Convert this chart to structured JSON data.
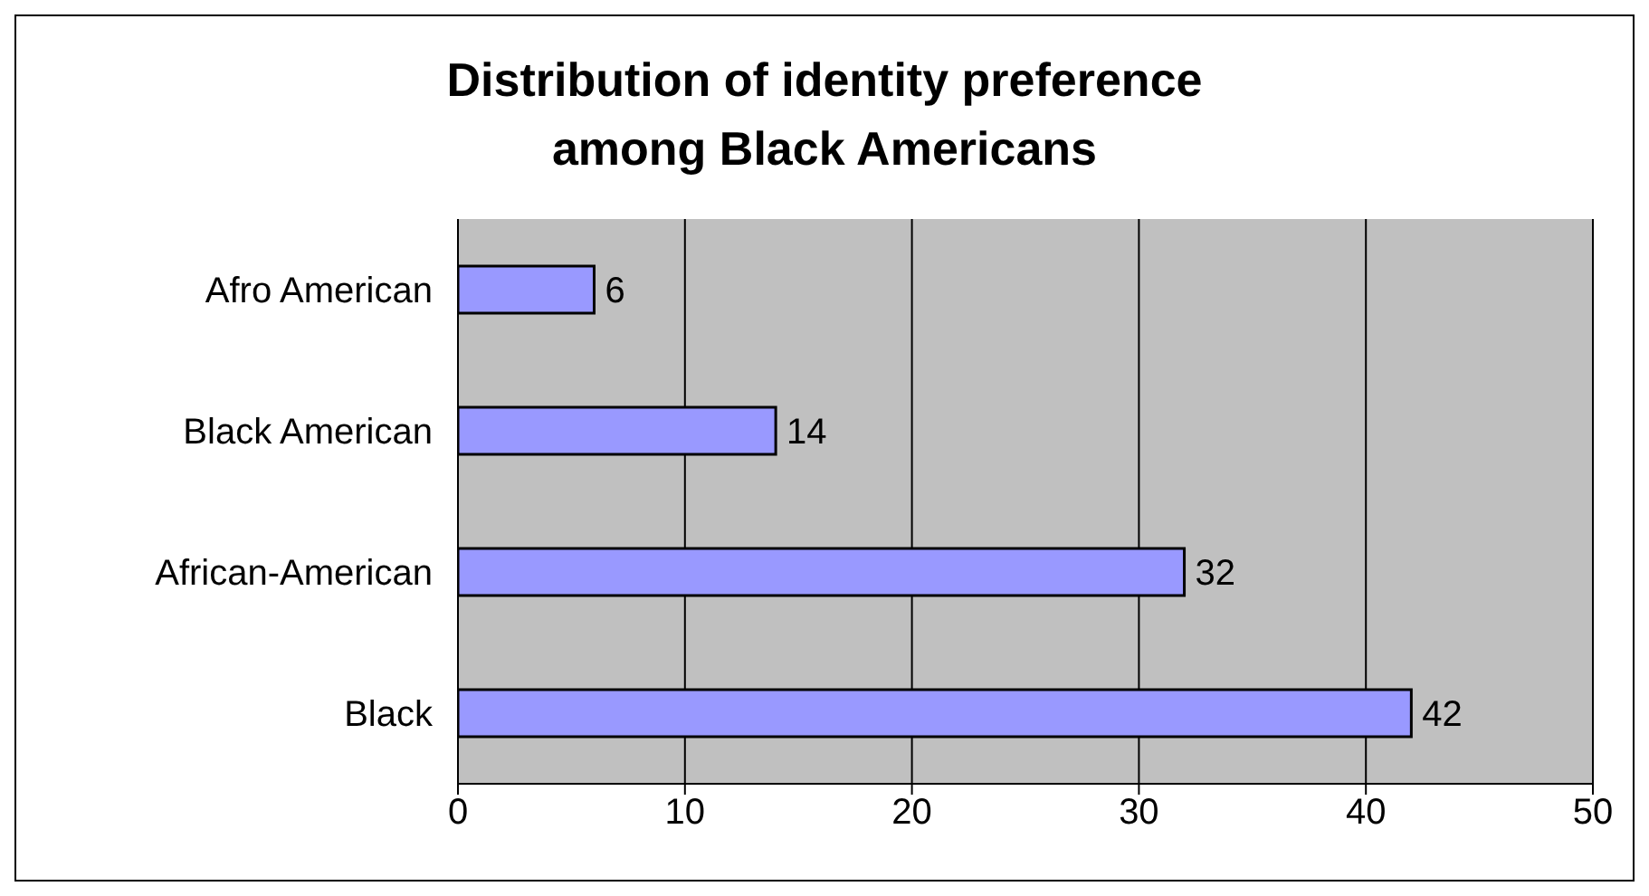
{
  "chart_data": {
    "type": "bar",
    "orientation": "horizontal",
    "title": "Distribution of identity preference among Black Americans",
    "categories": [
      "Afro American",
      "Black American",
      "African-American",
      "Black"
    ],
    "values": [
      6,
      14,
      32,
      42
    ],
    "color": "#9999ff",
    "xlim": [
      0,
      50
    ],
    "xticks": [
      0,
      10,
      20,
      30,
      40,
      50
    ],
    "grid": "x",
    "data_labels": true
  }
}
